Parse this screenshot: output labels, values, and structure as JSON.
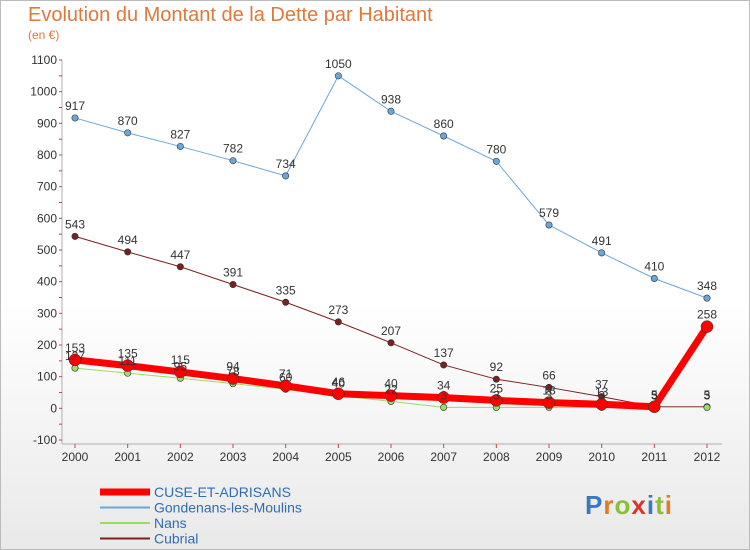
{
  "title": "Evolution du Montant de la Dette par Habitant",
  "subtitle": "(en €)",
  "logo_text": "Proxiti",
  "chart_data": {
    "type": "line",
    "title": "Evolution du Montant de la Dette par Habitant",
    "ylabel": "(en €)",
    "xlabel": "",
    "x": [
      2000,
      2001,
      2002,
      2003,
      2004,
      2005,
      2006,
      2007,
      2008,
      2009,
      2010,
      2011,
      2012
    ],
    "ylim": [
      -100,
      1100
    ],
    "yticks": [
      -100,
      0,
      100,
      200,
      300,
      400,
      500,
      600,
      700,
      800,
      900,
      1000,
      1100
    ],
    "grid": false,
    "legend_position": "bottom-left",
    "series": [
      {
        "name": "CUSE-ET-ADRISANS",
        "color": "#ff0000",
        "width": 7,
        "values": [
          153,
          135,
          115,
          94,
          71,
          46,
          40,
          34,
          25,
          18,
          13,
          5,
          258
        ]
      },
      {
        "name": "Gondenans-les-Moulins",
        "color": "#6ca6d9",
        "width": 1,
        "values": [
          917,
          870,
          827,
          782,
          734,
          1050,
          938,
          860,
          780,
          579,
          491,
          410,
          348
        ]
      },
      {
        "name": "Nans",
        "color": "#99dd66",
        "width": 1,
        "values": [
          127,
          111,
          95,
          78,
          60,
          40,
          22,
          3,
          3,
          3,
          3,
          3,
          3
        ]
      },
      {
        "name": "Cubrial",
        "color": "#7a2020",
        "width": 1,
        "values": [
          543,
          494,
          447,
          391,
          335,
          273,
          207,
          137,
          92,
          66,
          37,
          5,
          5
        ]
      }
    ]
  }
}
